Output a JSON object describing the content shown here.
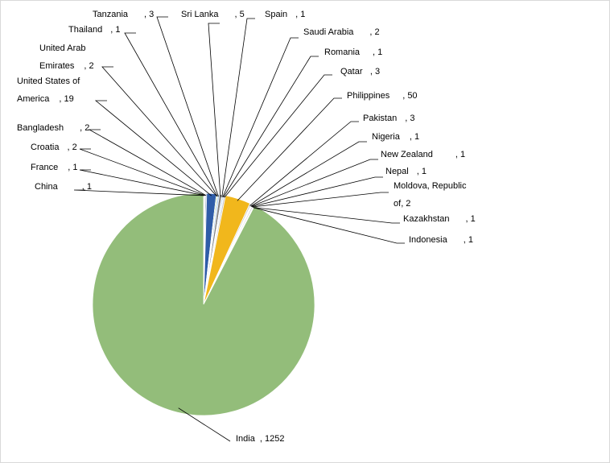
{
  "chart_data": {
    "type": "pie",
    "title": "",
    "legend": "none",
    "slices": [
      {
        "label": "China",
        "value": 1,
        "color": "#f3e9b0"
      },
      {
        "label": "France",
        "value": 1,
        "color": "#c0c0c0"
      },
      {
        "label": "Croatia",
        "value": 2,
        "color": "#d9d9d9"
      },
      {
        "label": "Bangladesh",
        "value": 2,
        "color": "#2e5597"
      },
      {
        "label": "United States of America",
        "value": 19,
        "color": "#2f5da8"
      },
      {
        "label": "United Arab Emirates",
        "value": 2,
        "color": "#70ad47"
      },
      {
        "label": "Thailand",
        "value": 1,
        "color": "#a5a5a5"
      },
      {
        "label": "Tanzania",
        "value": 3,
        "color": "#9dc3e6"
      },
      {
        "label": "Sri Lanka",
        "value": 5,
        "color": "#7f7f7f"
      },
      {
        "label": "Spain",
        "value": 1,
        "color": "#f2f2f2"
      },
      {
        "label": "Saudi Arabia",
        "value": 2,
        "color": "#5b9bd5"
      },
      {
        "label": "Romania",
        "value": 1,
        "color": "#264478"
      },
      {
        "label": "Qatar",
        "value": 3,
        "color": "#bfbfbf"
      },
      {
        "label": "Philippines",
        "value": 50,
        "color": "#f1b71c"
      },
      {
        "label": "Pakistan",
        "value": 3,
        "color": "#d0d0d0"
      },
      {
        "label": "Nigeria",
        "value": 1,
        "color": "#8faadc"
      },
      {
        "label": "New Zealand",
        "value": 1,
        "color": "#e7e6e6"
      },
      {
        "label": "Nepal",
        "value": 1,
        "color": "#a9d18e"
      },
      {
        "label": "Moldova, Republic of",
        "value": 2,
        "color": "#9e9e9e"
      },
      {
        "label": "Kazakhstan",
        "value": 1,
        "color": "#c9c9c9"
      },
      {
        "label": "Indonesia",
        "value": 1,
        "color": "#7f9a55"
      },
      {
        "label": "India",
        "value": 1252,
        "color": "#93bd7a"
      }
    ],
    "data_labels": [
      {
        "lines": [
          "China",
          ", 1"
        ]
      },
      {
        "lines": [
          "France",
          ", 1"
        ]
      },
      {
        "lines": [
          "Croatia",
          ", 2"
        ]
      },
      {
        "lines": [
          "Bangladesh",
          ", 2"
        ]
      },
      {
        "lines": [
          "United States of",
          "America",
          ", 19"
        ]
      },
      {
        "lines": [
          "United Arab",
          "Emirates",
          ", 2"
        ]
      },
      {
        "lines": [
          "Thailand",
          ", 1"
        ]
      },
      {
        "lines": [
          "Tanzania",
          ", 3"
        ]
      },
      {
        "lines": [
          "Sri Lanka",
          ", 5"
        ]
      },
      {
        "lines": [
          "Spain",
          ", 1"
        ]
      },
      {
        "lines": [
          "Saudi Arabia",
          ", 2"
        ]
      },
      {
        "lines": [
          "Romania",
          ", 1"
        ]
      },
      {
        "lines": [
          "Qatar",
          ", 3"
        ]
      },
      {
        "lines": [
          "Philippines",
          ", 50"
        ]
      },
      {
        "lines": [
          "Pakistan",
          ", 3"
        ]
      },
      {
        "lines": [
          "Nigeria",
          ", 1"
        ]
      },
      {
        "lines": [
          "New Zealand",
          ", 1"
        ]
      },
      {
        "lines": [
          "Nepal",
          ", 1"
        ]
      },
      {
        "lines": [
          "Moldova, Republic",
          "of",
          ", 2"
        ]
      },
      {
        "lines": [
          "Kazakhstan",
          ", 1"
        ]
      },
      {
        "lines": [
          "Indonesia",
          ", 1"
        ]
      },
      {
        "lines": [
          "India",
          ", 1252"
        ]
      }
    ]
  }
}
